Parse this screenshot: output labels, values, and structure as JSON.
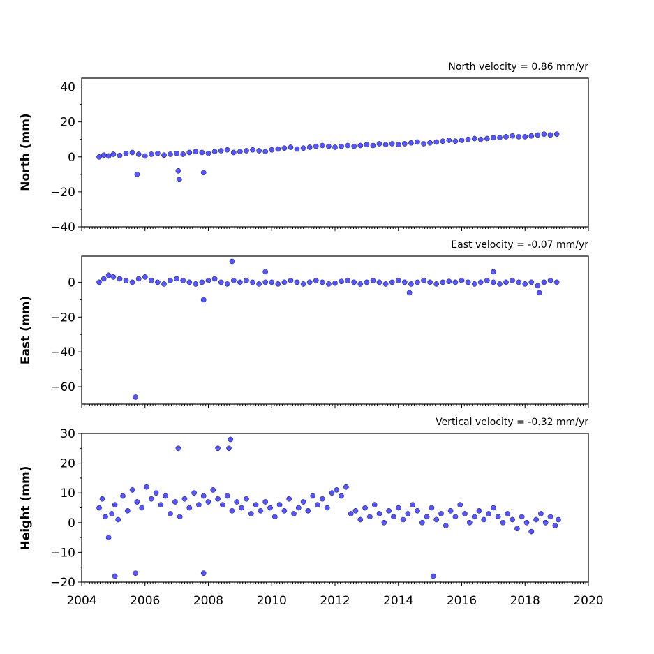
{
  "chart_data": [
    {
      "type": "scatter",
      "title": "North velocity = 0.86 mm/yr",
      "ylabel": "North (mm)",
      "xlim": [
        2004,
        2020
      ],
      "ylim": [
        -40,
        45
      ],
      "yticks": [
        40,
        20,
        0,
        -20,
        -40
      ],
      "ytick_labels": [
        "40",
        "20",
        "0",
        "−20",
        "−40"
      ],
      "series": [
        {
          "color": "#5555ff",
          "x": [
            2004.55,
            2004.7,
            2004.85,
            2005.0,
            2005.2,
            2005.4,
            2005.6,
            2005.8,
            2006.0,
            2006.2,
            2006.4,
            2006.6,
            2006.8,
            2007.0,
            2007.2,
            2007.4,
            2007.6,
            2007.8,
            2008.0,
            2008.2,
            2008.4,
            2008.6,
            2008.8,
            2009.0,
            2009.2,
            2009.4,
            2009.6,
            2009.8,
            2010.0,
            2010.2,
            2010.4,
            2010.6,
            2010.8,
            2011.0,
            2011.2,
            2011.4,
            2011.6,
            2011.8,
            2012.0,
            2012.2,
            2012.4,
            2012.6,
            2012.8,
            2013.0,
            2013.2,
            2013.4,
            2013.6,
            2013.8,
            2014.0,
            2014.2,
            2014.4,
            2014.6,
            2014.8,
            2015.0,
            2015.2,
            2015.4,
            2015.6,
            2015.8,
            2016.0,
            2016.2,
            2016.4,
            2016.6,
            2016.8,
            2017.0,
            2017.2,
            2017.4,
            2017.6,
            2017.8,
            2018.0,
            2018.2,
            2018.4,
            2018.6,
            2018.8,
            2019.0,
            2005.75,
            2007.05,
            2007.08,
            2007.85
          ],
          "y": [
            0.0,
            1.0,
            0.5,
            1.5,
            0.8,
            2.0,
            2.5,
            1.5,
            0.5,
            1.5,
            2.0,
            1.0,
            1.5,
            2.0,
            1.5,
            2.5,
            3.0,
            2.5,
            2.0,
            3.0,
            3.5,
            4.0,
            2.5,
            3.0,
            3.5,
            4.0,
            3.5,
            3.0,
            4.0,
            4.5,
            5.0,
            5.5,
            4.5,
            5.0,
            5.5,
            6.0,
            6.5,
            6.0,
            5.5,
            6.0,
            6.5,
            6.0,
            6.5,
            7.0,
            6.5,
            7.5,
            7.0,
            7.5,
            7.0,
            7.5,
            8.0,
            8.5,
            7.5,
            8.0,
            8.5,
            9.0,
            9.5,
            9.0,
            9.5,
            10.0,
            10.5,
            10.0,
            10.5,
            11.0,
            11.0,
            11.5,
            12.0,
            11.5,
            11.5,
            12.0,
            12.5,
            13.0,
            12.5,
            13.0,
            -10.0,
            -8.0,
            -13.0,
            -9.0
          ]
        }
      ]
    },
    {
      "type": "scatter",
      "title": "East velocity = -0.07 mm/yr",
      "ylabel": "East (mm)",
      "xlim": [
        2004,
        2020
      ],
      "ylim": [
        -70,
        15
      ],
      "yticks": [
        0,
        -20,
        -40,
        -60
      ],
      "ytick_labels": [
        "0",
        "−20",
        "−40",
        "−60"
      ],
      "series": [
        {
          "color": "#5555ff",
          "x": [
            2004.55,
            2004.7,
            2004.85,
            2005.0,
            2005.2,
            2005.4,
            2005.6,
            2005.8,
            2006.0,
            2006.2,
            2006.4,
            2006.6,
            2006.8,
            2007.0,
            2007.2,
            2007.4,
            2007.6,
            2007.8,
            2008.0,
            2008.2,
            2008.4,
            2008.6,
            2008.8,
            2009.0,
            2009.2,
            2009.4,
            2009.6,
            2009.8,
            2010.0,
            2010.2,
            2010.4,
            2010.6,
            2010.8,
            2011.0,
            2011.2,
            2011.4,
            2011.6,
            2011.8,
            2012.0,
            2012.2,
            2012.4,
            2012.6,
            2012.8,
            2013.0,
            2013.2,
            2013.4,
            2013.6,
            2013.8,
            2014.0,
            2014.2,
            2014.4,
            2014.6,
            2014.8,
            2015.0,
            2015.2,
            2015.4,
            2015.6,
            2015.8,
            2016.0,
            2016.2,
            2016.4,
            2016.6,
            2016.8,
            2017.0,
            2017.2,
            2017.4,
            2017.6,
            2017.8,
            2018.0,
            2018.2,
            2018.4,
            2018.6,
            2018.8,
            2019.0,
            2005.7,
            2007.85,
            2008.75,
            2009.8,
            2014.35,
            2017.0,
            2018.45
          ],
          "y": [
            0.0,
            2.0,
            4.0,
            3.0,
            2.0,
            1.0,
            0.0,
            2.0,
            3.0,
            1.0,
            0.0,
            -1.0,
            1.0,
            2.0,
            1.0,
            0.0,
            -1.0,
            0.0,
            1.0,
            2.0,
            0.0,
            -1.0,
            1.0,
            0.0,
            1.0,
            0.0,
            -1.0,
            0.0,
            0.0,
            -1.0,
            0.0,
            1.0,
            0.0,
            -1.0,
            0.0,
            1.0,
            0.0,
            -1.0,
            -0.5,
            0.5,
            1.0,
            0.0,
            -1.0,
            0.0,
            1.0,
            0.0,
            -1.0,
            0.0,
            1.0,
            0.0,
            -1.0,
            0.0,
            1.0,
            0.0,
            -1.0,
            0.0,
            0.5,
            0.0,
            1.0,
            0.0,
            -1.0,
            0.0,
            1.0,
            0.0,
            -1.0,
            0.0,
            1.0,
            0.0,
            -1.0,
            0.0,
            -2.0,
            0.0,
            1.0,
            0.0,
            -66.0,
            -10.0,
            12.0,
            6.0,
            -6.0,
            6.0,
            -6.0
          ]
        }
      ]
    },
    {
      "type": "scatter",
      "title": "Vertical velocity = -0.32 mm/yr",
      "ylabel": "Height (mm)",
      "xlim": [
        2004,
        2020
      ],
      "ylim": [
        -20,
        30
      ],
      "yticks": [
        30,
        20,
        10,
        0,
        -10,
        -20
      ],
      "ytick_labels": [
        "30",
        "20",
        "10",
        "0",
        "−10",
        "−20"
      ],
      "series": [
        {
          "color": "#5555ff",
          "x": [
            2004.55,
            2004.65,
            2004.75,
            2004.85,
            2004.95,
            2005.05,
            2005.15,
            2005.3,
            2005.45,
            2005.6,
            2005.75,
            2005.9,
            2006.05,
            2006.2,
            2006.35,
            2006.5,
            2006.65,
            2006.8,
            2006.95,
            2007.1,
            2007.25,
            2007.4,
            2007.55,
            2007.7,
            2007.85,
            2008.0,
            2008.15,
            2008.3,
            2008.45,
            2008.6,
            2008.75,
            2008.9,
            2009.05,
            2009.2,
            2009.35,
            2009.5,
            2009.65,
            2009.8,
            2009.95,
            2010.1,
            2010.25,
            2010.4,
            2010.55,
            2010.7,
            2010.85,
            2011.0,
            2011.15,
            2011.3,
            2011.45,
            2011.6,
            2011.75,
            2011.9,
            2012.05,
            2012.2,
            2012.35,
            2012.5,
            2012.65,
            2012.8,
            2012.95,
            2013.1,
            2013.25,
            2013.4,
            2013.55,
            2013.7,
            2013.85,
            2014.0,
            2014.15,
            2014.3,
            2014.45,
            2014.6,
            2014.75,
            2014.9,
            2015.05,
            2015.2,
            2015.35,
            2015.5,
            2015.65,
            2015.8,
            2015.95,
            2016.1,
            2016.25,
            2016.4,
            2016.55,
            2016.7,
            2016.85,
            2017.0,
            2017.15,
            2017.3,
            2017.45,
            2017.6,
            2017.75,
            2017.9,
            2018.05,
            2018.2,
            2018.35,
            2018.5,
            2018.65,
            2018.8,
            2018.95,
            2019.05,
            2008.7,
            2008.65,
            2008.3,
            2007.05,
            2005.05,
            2015.1,
            2007.85,
            2005.7
          ],
          "y": [
            5.0,
            8.0,
            2.0,
            -5.0,
            3.0,
            6.0,
            1.0,
            9.0,
            4.0,
            11.0,
            7.0,
            5.0,
            12.0,
            8.0,
            10.0,
            6.0,
            9.0,
            3.0,
            7.0,
            2.0,
            8.0,
            5.0,
            10.0,
            6.0,
            9.0,
            7.0,
            11.0,
            8.0,
            6.0,
            9.0,
            4.0,
            7.0,
            5.0,
            8.0,
            3.0,
            6.0,
            4.0,
            7.0,
            5.0,
            2.0,
            6.0,
            4.0,
            8.0,
            3.0,
            5.0,
            7.0,
            4.0,
            9.0,
            6.0,
            8.0,
            5.0,
            10.0,
            11.0,
            9.0,
            12.0,
            3.0,
            4.0,
            1.0,
            5.0,
            2.0,
            6.0,
            3.0,
            0.0,
            4.0,
            2.0,
            5.0,
            1.0,
            3.0,
            6.0,
            4.0,
            0.0,
            2.0,
            5.0,
            1.0,
            3.0,
            -1.0,
            4.0,
            2.0,
            6.0,
            3.0,
            0.0,
            2.0,
            4.0,
            1.0,
            3.0,
            5.0,
            2.0,
            0.0,
            3.0,
            1.0,
            -2.0,
            2.0,
            0.0,
            -3.0,
            1.0,
            3.0,
            0.0,
            2.0,
            -1.0,
            1.0,
            28.0,
            25.0,
            25.0,
            25.0,
            -18.0,
            -18.0,
            -17.0,
            -17.0
          ]
        }
      ]
    }
  ],
  "x_axis": {
    "ticks": [
      2004,
      2006,
      2008,
      2010,
      2012,
      2014,
      2016,
      2018,
      2020
    ],
    "tick_labels": [
      "2004",
      "2006",
      "2008",
      "2010",
      "2012",
      "2014",
      "2016",
      "2018",
      "2020"
    ],
    "minor_per_year": 12
  }
}
